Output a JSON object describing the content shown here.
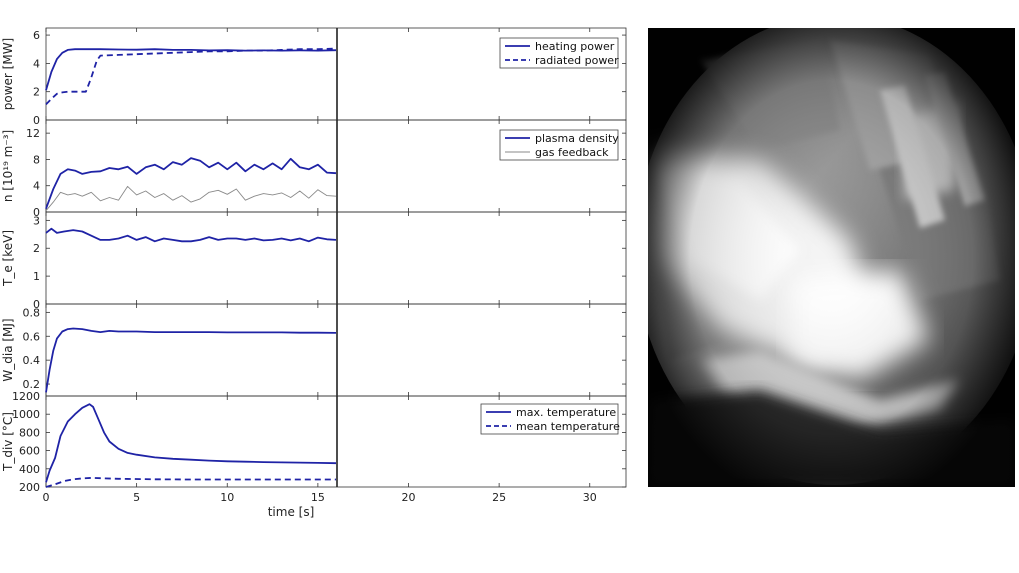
{
  "chart_data": [
    {
      "type": "line",
      "ylabel": "power [MW]",
      "ylim": [
        0,
        6.5
      ],
      "yticks": [
        0,
        2,
        4,
        6
      ],
      "xlim": [
        0,
        32
      ],
      "legend_position": "top-right",
      "series": [
        {
          "name": "heating power",
          "color": "#1f23a6",
          "style": "solid",
          "x": [
            0,
            0.3,
            0.6,
            0.9,
            1.2,
            1.6,
            2,
            3,
            4,
            5,
            6,
            7,
            8,
            9,
            10,
            11,
            12,
            13,
            14,
            15,
            16
          ],
          "y": [
            2.1,
            3.4,
            4.3,
            4.75,
            4.95,
            5.0,
            5.0,
            5.0,
            4.98,
            4.97,
            5.0,
            4.95,
            4.95,
            4.92,
            4.93,
            4.9,
            4.92,
            4.9,
            4.92,
            4.9,
            4.93
          ]
        },
        {
          "name": "radiated power",
          "color": "#1f23a6",
          "style": "dashed",
          "x": [
            0,
            0.3,
            0.6,
            0.9,
            1.2,
            1.5,
            2.2,
            2.5,
            2.8,
            3,
            4,
            5,
            6,
            7,
            8,
            9,
            10,
            11,
            12,
            13,
            14,
            15,
            16
          ],
          "y": [
            1.1,
            1.5,
            1.85,
            1.95,
            2.0,
            2.0,
            2.0,
            3.0,
            4.2,
            4.55,
            4.6,
            4.65,
            4.7,
            4.75,
            4.8,
            4.85,
            4.85,
            4.9,
            4.9,
            4.95,
            5.0,
            5.0,
            5.05
          ]
        }
      ]
    },
    {
      "type": "line",
      "ylabel": "n [10¹⁹ m⁻³]",
      "ylim": [
        0,
        14
      ],
      "yticks": [
        0,
        4,
        8,
        12
      ],
      "xlim": [
        0,
        32
      ],
      "legend_position": "top-right",
      "series": [
        {
          "name": "plasma density",
          "color": "#1f23a6",
          "style": "solid",
          "x": [
            0,
            0.4,
            0.8,
            1.2,
            1.6,
            2.0,
            2.5,
            3.0,
            3.5,
            4.0,
            4.5,
            5.0,
            5.5,
            6.0,
            6.5,
            7.0,
            7.5,
            8.0,
            8.5,
            9.0,
            9.5,
            10.0,
            10.5,
            11.0,
            11.5,
            12.0,
            12.5,
            13.0,
            13.5,
            14.0,
            14.5,
            15.0,
            15.5,
            16.0
          ],
          "y": [
            0.5,
            3.5,
            5.8,
            6.5,
            6.3,
            5.8,
            6.1,
            6.2,
            6.7,
            6.5,
            6.9,
            5.8,
            6.8,
            7.2,
            6.5,
            7.6,
            7.2,
            8.2,
            7.8,
            6.8,
            7.5,
            6.5,
            7.5,
            6.2,
            7.2,
            6.5,
            7.4,
            6.5,
            8.1,
            6.8,
            6.5,
            7.2,
            6.0,
            5.9
          ]
        },
        {
          "name": "gas feedback",
          "color": "#8a8a8a",
          "style": "solid",
          "x": [
            0,
            0.4,
            0.8,
            1.2,
            1.6,
            2.0,
            2.5,
            3.0,
            3.5,
            4.0,
            4.5,
            5.0,
            5.5,
            6.0,
            6.5,
            7.0,
            7.5,
            8.0,
            8.5,
            9.0,
            9.5,
            10.0,
            10.5,
            11.0,
            11.5,
            12.0,
            12.5,
            13.0,
            13.5,
            14.0,
            14.5,
            15.0,
            15.5,
            16.0
          ],
          "y": [
            0.2,
            1.5,
            3.0,
            2.6,
            2.8,
            2.4,
            3.0,
            1.7,
            2.2,
            1.8,
            3.9,
            2.6,
            3.2,
            2.2,
            2.8,
            1.8,
            2.5,
            1.5,
            2.0,
            3.0,
            3.3,
            2.7,
            3.5,
            1.8,
            2.4,
            2.8,
            2.6,
            2.9,
            2.2,
            3.2,
            2.1,
            3.4,
            2.5,
            2.4
          ]
        }
      ]
    },
    {
      "type": "line",
      "ylabel": "T_e [keV]",
      "ylim": [
        0,
        3.3
      ],
      "yticks": [
        0,
        1,
        2,
        3
      ],
      "xlim": [
        0,
        32
      ],
      "series": [
        {
          "name": "",
          "color": "#1f23a6",
          "style": "solid",
          "x": [
            0,
            0.3,
            0.6,
            1.0,
            1.5,
            2.0,
            2.5,
            3.0,
            3.5,
            4.0,
            4.5,
            5.0,
            5.5,
            6.0,
            6.5,
            7.0,
            7.5,
            8.0,
            8.5,
            9.0,
            9.5,
            10.0,
            10.5,
            11.0,
            11.5,
            12.0,
            12.5,
            13.0,
            13.5,
            14.0,
            14.5,
            15.0,
            15.5,
            16.0
          ],
          "y": [
            2.55,
            2.7,
            2.55,
            2.6,
            2.65,
            2.6,
            2.45,
            2.3,
            2.3,
            2.35,
            2.45,
            2.3,
            2.4,
            2.25,
            2.35,
            2.3,
            2.25,
            2.25,
            2.3,
            2.4,
            2.3,
            2.35,
            2.35,
            2.3,
            2.35,
            2.28,
            2.3,
            2.35,
            2.28,
            2.35,
            2.25,
            2.38,
            2.32,
            2.3
          ]
        }
      ]
    },
    {
      "type": "line",
      "ylabel": "W_dia [MJ]",
      "ylim": [
        0.1,
        0.87
      ],
      "yticks": [
        0.2,
        0.4,
        0.6,
        0.8
      ],
      "xlim": [
        0,
        32
      ],
      "series": [
        {
          "name": "",
          "color": "#1f23a6",
          "style": "solid",
          "x": [
            0,
            0.2,
            0.4,
            0.6,
            0.9,
            1.2,
            1.5,
            2.0,
            2.5,
            3.0,
            3.5,
            4.0,
            5,
            6,
            7,
            8,
            9,
            10,
            11,
            12,
            13,
            14,
            15,
            16
          ],
          "y": [
            0.13,
            0.32,
            0.48,
            0.58,
            0.64,
            0.66,
            0.665,
            0.66,
            0.645,
            0.635,
            0.645,
            0.64,
            0.64,
            0.635,
            0.635,
            0.635,
            0.635,
            0.632,
            0.632,
            0.632,
            0.632,
            0.63,
            0.63,
            0.628
          ]
        }
      ]
    },
    {
      "type": "line",
      "ylabel": "T_div [°C]",
      "ylim": [
        200,
        1200
      ],
      "yticks": [
        200,
        400,
        600,
        800,
        1000,
        1200
      ],
      "xlim": [
        0,
        32
      ],
      "xticks": [
        0,
        5,
        10,
        15,
        20,
        25,
        30
      ],
      "xlabel": "time [s]",
      "legend_position": "top-right",
      "series": [
        {
          "name": "max. temperature",
          "color": "#1f23a6",
          "style": "solid",
          "x": [
            0,
            0.2,
            0.5,
            0.8,
            1.2,
            1.6,
            2.0,
            2.4,
            2.6,
            2.9,
            3.2,
            3.5,
            4.0,
            4.5,
            5.0,
            6.0,
            7.0,
            8.0,
            9.0,
            10,
            11,
            12,
            13,
            14,
            15,
            16
          ],
          "y": [
            250,
            380,
            520,
            760,
            920,
            1000,
            1070,
            1110,
            1080,
            940,
            800,
            700,
            620,
            575,
            555,
            525,
            510,
            500,
            490,
            482,
            478,
            474,
            470,
            468,
            465,
            462
          ]
        },
        {
          "name": "mean temperature",
          "color": "#1f23a6",
          "style": "dashed",
          "x": [
            0,
            0.5,
            1.0,
            1.5,
            2.0,
            2.5,
            3.0,
            4.0,
            6.0,
            8.0,
            10,
            12,
            14,
            16
          ],
          "y": [
            200,
            230,
            265,
            285,
            295,
            300,
            297,
            290,
            285,
            282,
            282,
            282,
            282,
            282
          ]
        }
      ]
    }
  ],
  "camera_image": {
    "description_icon": "camera-frame-image"
  }
}
